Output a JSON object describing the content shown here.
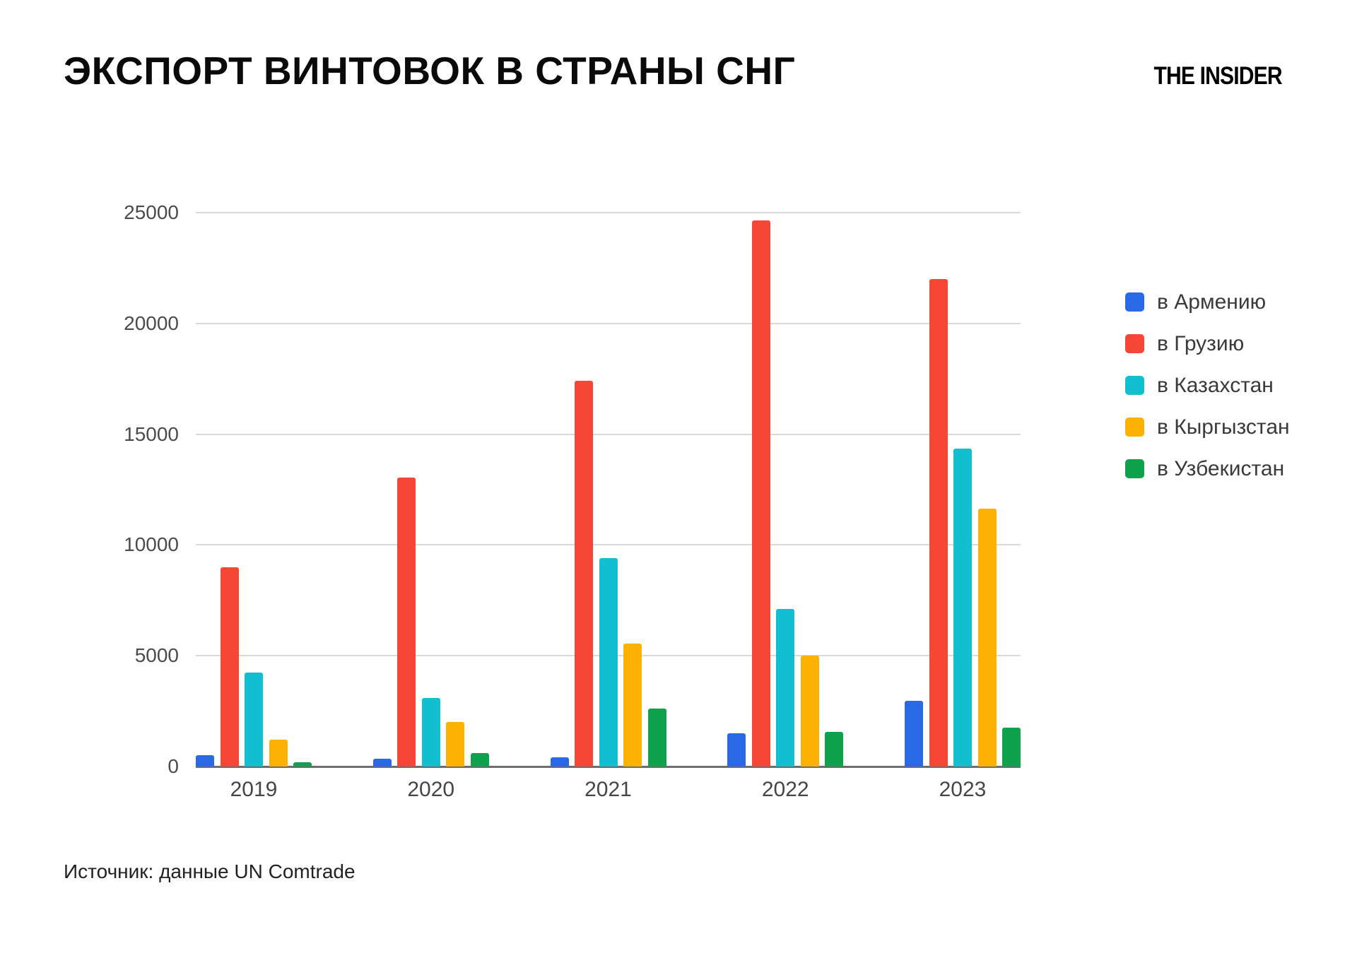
{
  "title": "ЭКСПОРТ ВИНТОВОК В СТРАНЫ СНГ",
  "logo": {
    "text": "THE INSIDER"
  },
  "source": "Источник: данные UN Comtrade",
  "colors": {
    "background": "#ffffff",
    "gridline": "#dadada",
    "axis_line": "#6d6d6d",
    "tick_text": "#4b4b4b",
    "title_text": "#0a0a0a"
  },
  "chart_data": {
    "type": "bar",
    "categories": [
      "2019",
      "2020",
      "2021",
      "2022",
      "2023"
    ],
    "series": [
      {
        "name": "в Армению",
        "color": "#2a69e5",
        "values": [
          500,
          350,
          400,
          1500,
          2950
        ]
      },
      {
        "name": "в Грузию",
        "color": "#f74635",
        "values": [
          9000,
          13050,
          17400,
          24650,
          22000
        ]
      },
      {
        "name": "в Казахстан",
        "color": "#12bfd0",
        "values": [
          4250,
          3100,
          9400,
          7100,
          14350
        ]
      },
      {
        "name": "в Кыргызстан",
        "color": "#fcb103",
        "values": [
          1200,
          2000,
          5550,
          5000,
          11650
        ]
      },
      {
        "name": "в Узбекистан",
        "color": "#0fa24c",
        "values": [
          200,
          600,
          2600,
          1550,
          1750
        ]
      }
    ],
    "title": "ЭКСПОРТ ВИНТОВОК В СТРАНЫ СНГ",
    "xlabel": "",
    "ylabel": "",
    "ylim": [
      0,
      25000
    ],
    "yticks": [
      0,
      5000,
      10000,
      15000,
      20000,
      25000
    ],
    "grid": true,
    "legend_position": "right"
  }
}
